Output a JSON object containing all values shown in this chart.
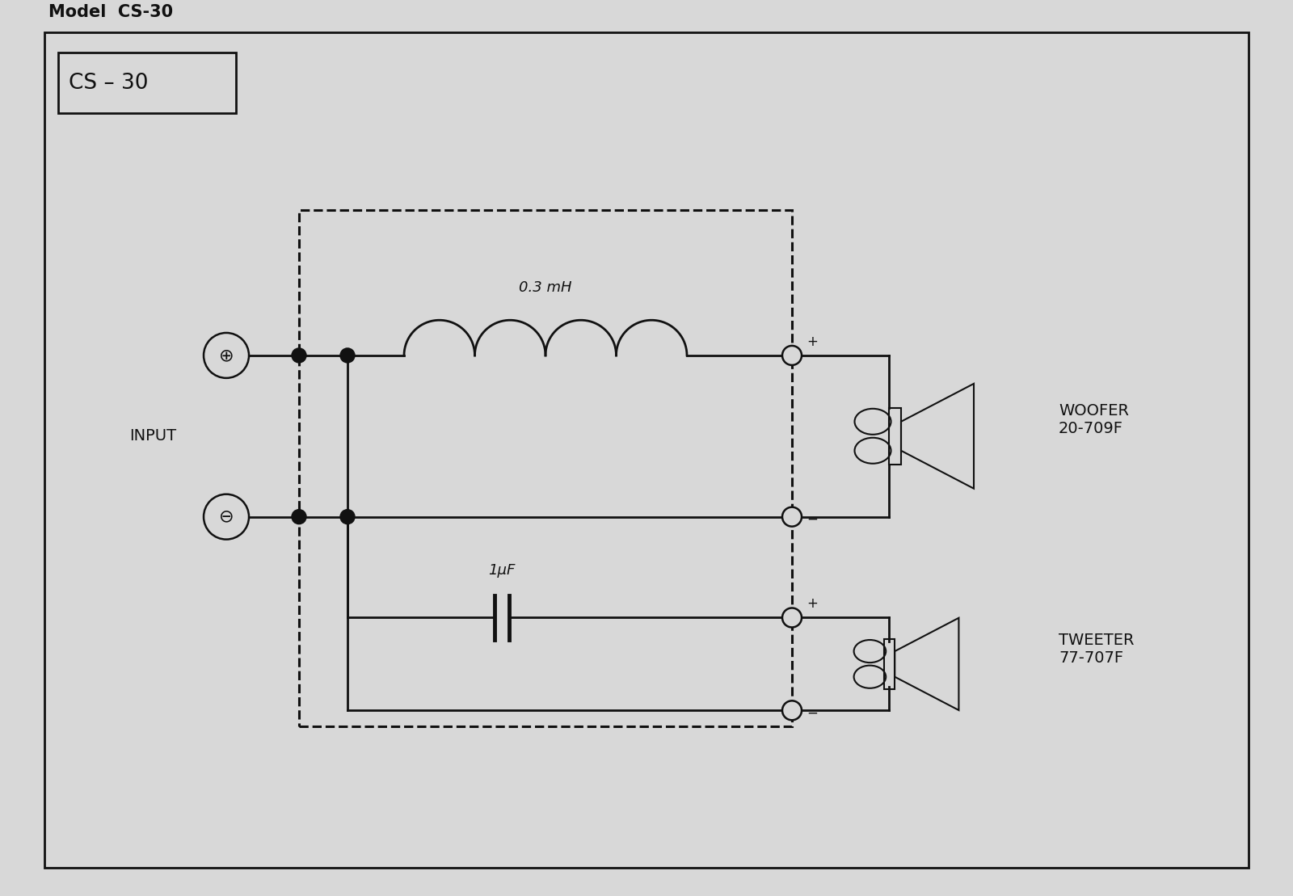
{
  "bg_color": "#d8d8d8",
  "fg_color": "#111111",
  "title": "Model  CS-30",
  "model_label": "CS – 30",
  "woofer_label": "WOOFER\n20-709F",
  "tweeter_label": "TWEETER\n77-707F",
  "inductor_label": "0.3 mH",
  "capacitor_label": "1μF",
  "input_label": "INPUT"
}
